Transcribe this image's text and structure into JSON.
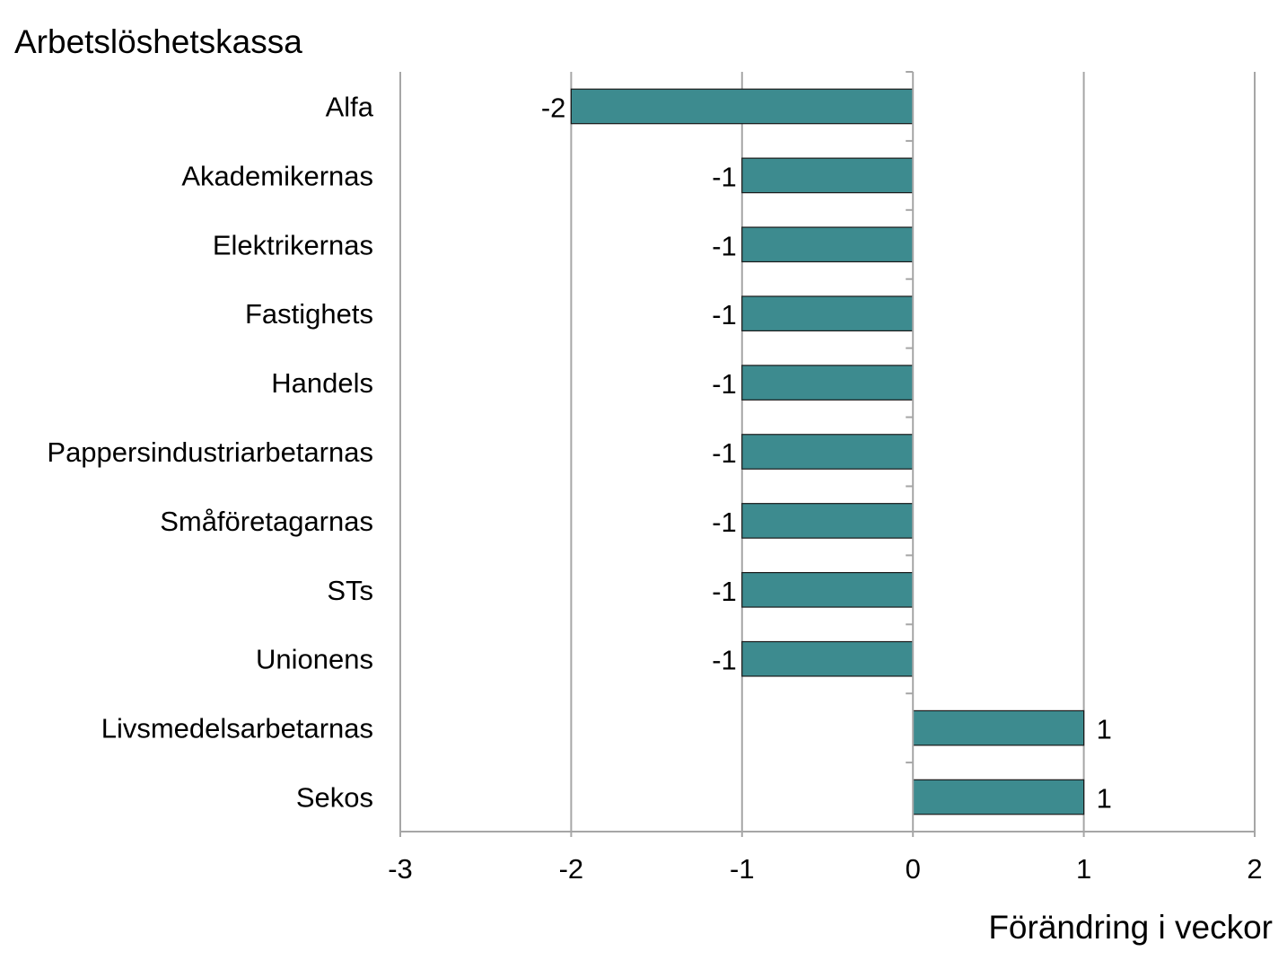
{
  "chart_data": {
    "type": "bar",
    "orientation": "horizontal",
    "ylabel": "Arbetslöshetskassa",
    "xlabel": "Förändring i veckor",
    "categories": [
      "Alfa",
      "Akademikernas",
      "Elektrikernas",
      "Fastighets",
      "Handels",
      "Pappersindustriarbetarnas",
      "Småföretagarnas",
      "STs",
      "Unionens",
      "Livsmedelsarbetarnas",
      "Sekos"
    ],
    "values": [
      -2,
      -1,
      -1,
      -1,
      -1,
      -1,
      -1,
      -1,
      -1,
      1,
      1
    ],
    "data_labels": [
      "-2",
      "-1",
      "-1",
      "-1",
      "-1",
      "-1",
      "-1",
      "-1",
      "-1",
      "1",
      "1"
    ],
    "xlim": [
      -3,
      2
    ],
    "xticks": [
      -3,
      -2,
      -1,
      0,
      1,
      2
    ],
    "xtick_labels": [
      "-3",
      "-2",
      "-1",
      "0",
      "1",
      "2"
    ],
    "grid": "vertical",
    "legend": "none",
    "bar_color": "#3d8b8f",
    "bar_edge_color": "#1a1a1a",
    "grid_color": "#a6a6a6"
  }
}
